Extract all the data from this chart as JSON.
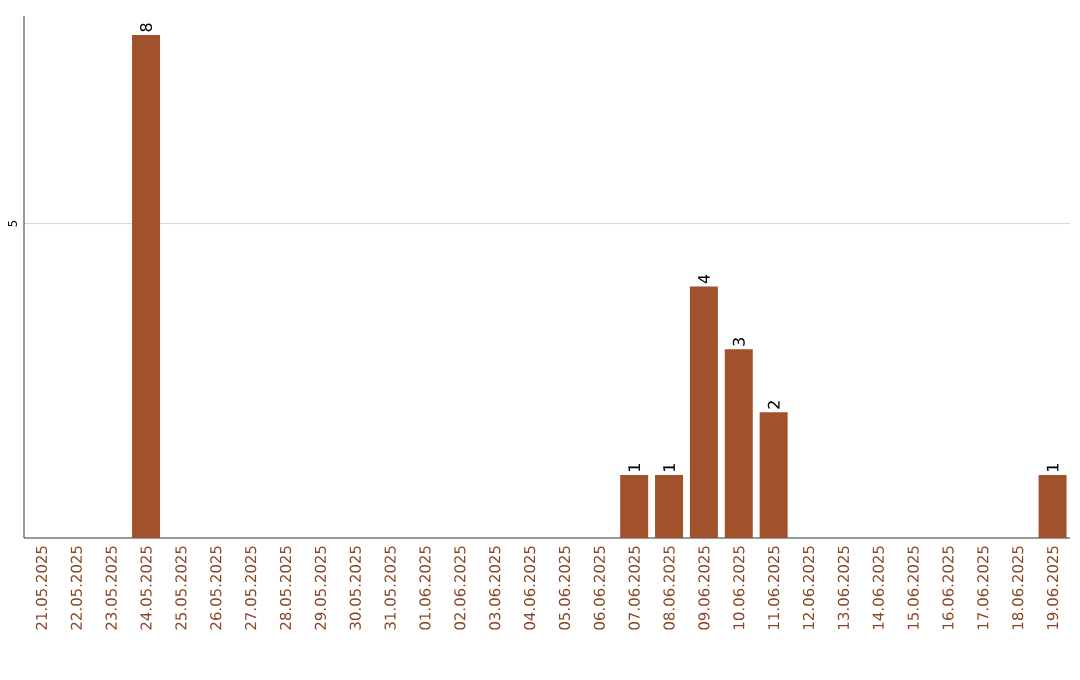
{
  "chart_data": {
    "type": "bar",
    "categories": [
      "21.05.2025",
      "22.05.2025",
      "23.05.2025",
      "24.05.2025",
      "25.05.2025",
      "26.05.2025",
      "27.05.2025",
      "28.05.2025",
      "29.05.2025",
      "30.05.2025",
      "31.05.2025",
      "01.06.2025",
      "02.06.2025",
      "03.06.2025",
      "04.06.2025",
      "05.06.2025",
      "06.06.2025",
      "07.06.2025",
      "08.06.2025",
      "09.06.2025",
      "10.06.2025",
      "11.06.2025",
      "12.06.2025",
      "13.06.2025",
      "14.06.2025",
      "15.06.2025",
      "16.06.2025",
      "17.06.2025",
      "18.06.2025",
      "19.06.2025"
    ],
    "values": [
      null,
      null,
      null,
      8,
      null,
      null,
      null,
      null,
      null,
      null,
      null,
      null,
      null,
      null,
      null,
      null,
      null,
      1,
      1,
      4,
      3,
      2,
      null,
      null,
      null,
      null,
      null,
      null,
      null,
      1
    ],
    "color": "#a0522d",
    "ylim": [
      0,
      8.3
    ],
    "yticks": [
      5
    ],
    "grid": "y",
    "data_labels": true
  }
}
